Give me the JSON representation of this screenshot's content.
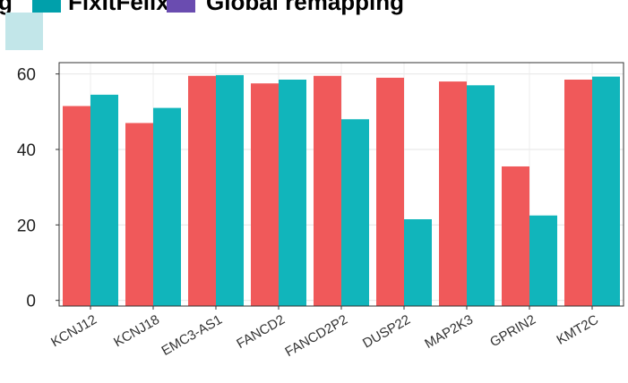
{
  "legend": {
    "items": [
      {
        "label": "g",
        "color": "#7e3fa0"
      },
      {
        "label": "FixItFelix",
        "color": "#00a0ab"
      },
      {
        "label": "Global remapping",
        "color": "#6a4cb0"
      }
    ],
    "extra_swatch_color": "#c2e6e9"
  },
  "chart_data": {
    "type": "bar",
    "categories": [
      "KCNJ12",
      "KCNJ18",
      "EMC3-AS1",
      "FANCD2",
      "FANCD2P2",
      "DUSP22",
      "MAP2K3",
      "GPRIN2",
      "KMT2C"
    ],
    "series": [
      {
        "values": [
          51.5,
          47,
          59.5,
          57.5,
          59.5,
          59,
          58,
          35.5,
          58.5
        ],
        "color": "#f0595a"
      },
      {
        "values": [
          54.5,
          51,
          59.7,
          58.5,
          48,
          21.5,
          57,
          22.5,
          59.3
        ],
        "color": "#11b5bb"
      }
    ],
    "yticks": [
      0,
      20,
      40,
      60
    ],
    "ylim": [
      -1.5,
      63
    ],
    "grid": true,
    "title": "",
    "xlabel": "",
    "ylabel": ""
  }
}
